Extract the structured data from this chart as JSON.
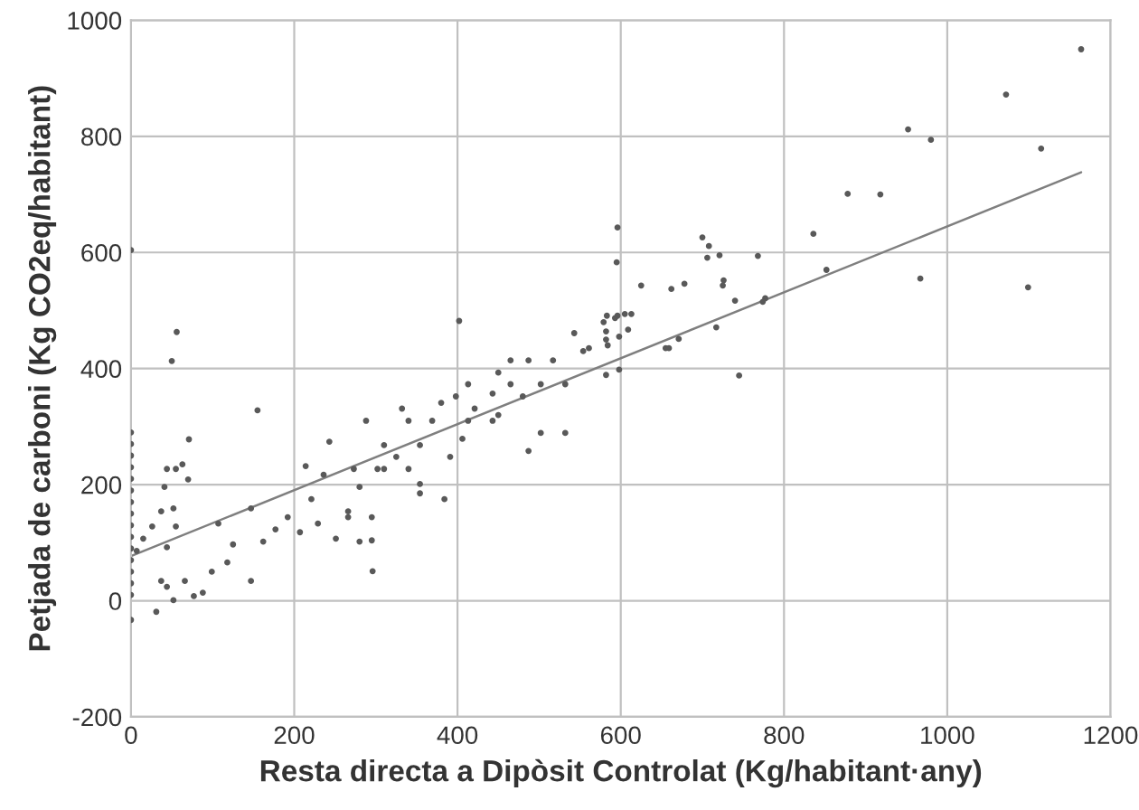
{
  "chart_data": {
    "type": "scatter",
    "xlabel": "Resta directa a Dipòsit Controlat (Kg/habitant·any)",
    "ylabel": "Petjada de carboni (Kg CO2eq/habitant)",
    "xlim": [
      0,
      1200
    ],
    "xticks": [
      0,
      200,
      400,
      600,
      800,
      1000,
      1200
    ],
    "ylim": [
      -200,
      1000
    ],
    "yticks": [
      -200,
      0,
      200,
      400,
      600,
      800,
      1000
    ],
    "grid": true,
    "marker": "circle",
    "series": [
      {
        "color": "#595959",
        "x": [
          1164,
          1072,
          952,
          980,
          1115,
          878,
          918,
          836,
          852,
          967,
          1099,
          596,
          595,
          700,
          708,
          706,
          721,
          768,
          726,
          725,
          678,
          662,
          625,
          740,
          777,
          774,
          717,
          671,
          655,
          659,
          745,
          596,
          593,
          605,
          613,
          609,
          579,
          582,
          582,
          584,
          598,
          582,
          0,
          56,
          50,
          155,
          402,
          296,
          31,
          0,
          0,
          0,
          0,
          0,
          0,
          0,
          0,
          0,
          0,
          0,
          0,
          0,
          0,
          0,
          0,
          44,
          55,
          63,
          71,
          70,
          41,
          52,
          37,
          55,
          26,
          15,
          7,
          44,
          37,
          44,
          52,
          66,
          77,
          88,
          99,
          118,
          147,
          107,
          147,
          125,
          162,
          177,
          207,
          192,
          221,
          229,
          266,
          251,
          295,
          280,
          214,
          236,
          243,
          266,
          280,
          295,
          302,
          288,
          310,
          325,
          332,
          340,
          354,
          369,
          380,
          398,
          413,
          421,
          443,
          450,
          465,
          480,
          487,
          502,
          502,
          517,
          532,
          543,
          554,
          561,
          583,
          598,
          391,
          406,
          354,
          340,
          310,
          273,
          443,
          487,
          384,
          450,
          465,
          413,
          532,
          354
        ],
        "values": [
          950,
          872,
          812,
          794,
          779,
          701,
          700,
          632,
          570,
          555,
          540,
          643,
          583,
          626,
          611,
          591,
          595,
          594,
          552,
          543,
          546,
          537,
          543,
          517,
          521,
          515,
          471,
          451,
          435,
          435,
          388,
          491,
          487,
          494,
          494,
          467,
          480,
          464,
          450,
          440,
          398,
          389,
          604,
          463,
          413,
          328,
          482,
          51,
          -19,
          -33,
          290,
          270,
          250,
          230,
          210,
          190,
          170,
          150,
          130,
          110,
          90,
          70,
          50,
          30,
          10,
          227,
          227,
          235,
          278,
          209,
          196,
          159,
          154,
          128,
          128,
          107,
          86,
          92,
          34,
          24,
          1,
          34,
          8,
          14,
          50,
          66,
          34,
          133,
          159,
          97,
          102,
          123,
          118,
          144,
          175,
          133,
          144,
          107,
          104,
          102,
          232,
          217,
          274,
          154,
          196,
          144,
          227,
          310,
          268,
          248,
          331,
          227,
          185,
          310,
          341,
          352,
          373,
          331,
          357,
          393,
          373,
          352,
          414,
          373,
          289,
          414,
          373,
          461,
          430,
          435,
          491,
          455,
          248,
          279,
          268,
          310,
          227,
          227,
          310,
          258,
          175,
          320,
          414,
          310,
          289,
          201
        ]
      },
      {
        "type": "line",
        "color": "#7f7f7f",
        "x": [
          0,
          1164
        ],
        "values": [
          77,
          738
        ],
        "line_style": "solid",
        "marker": "none"
      }
    ]
  }
}
